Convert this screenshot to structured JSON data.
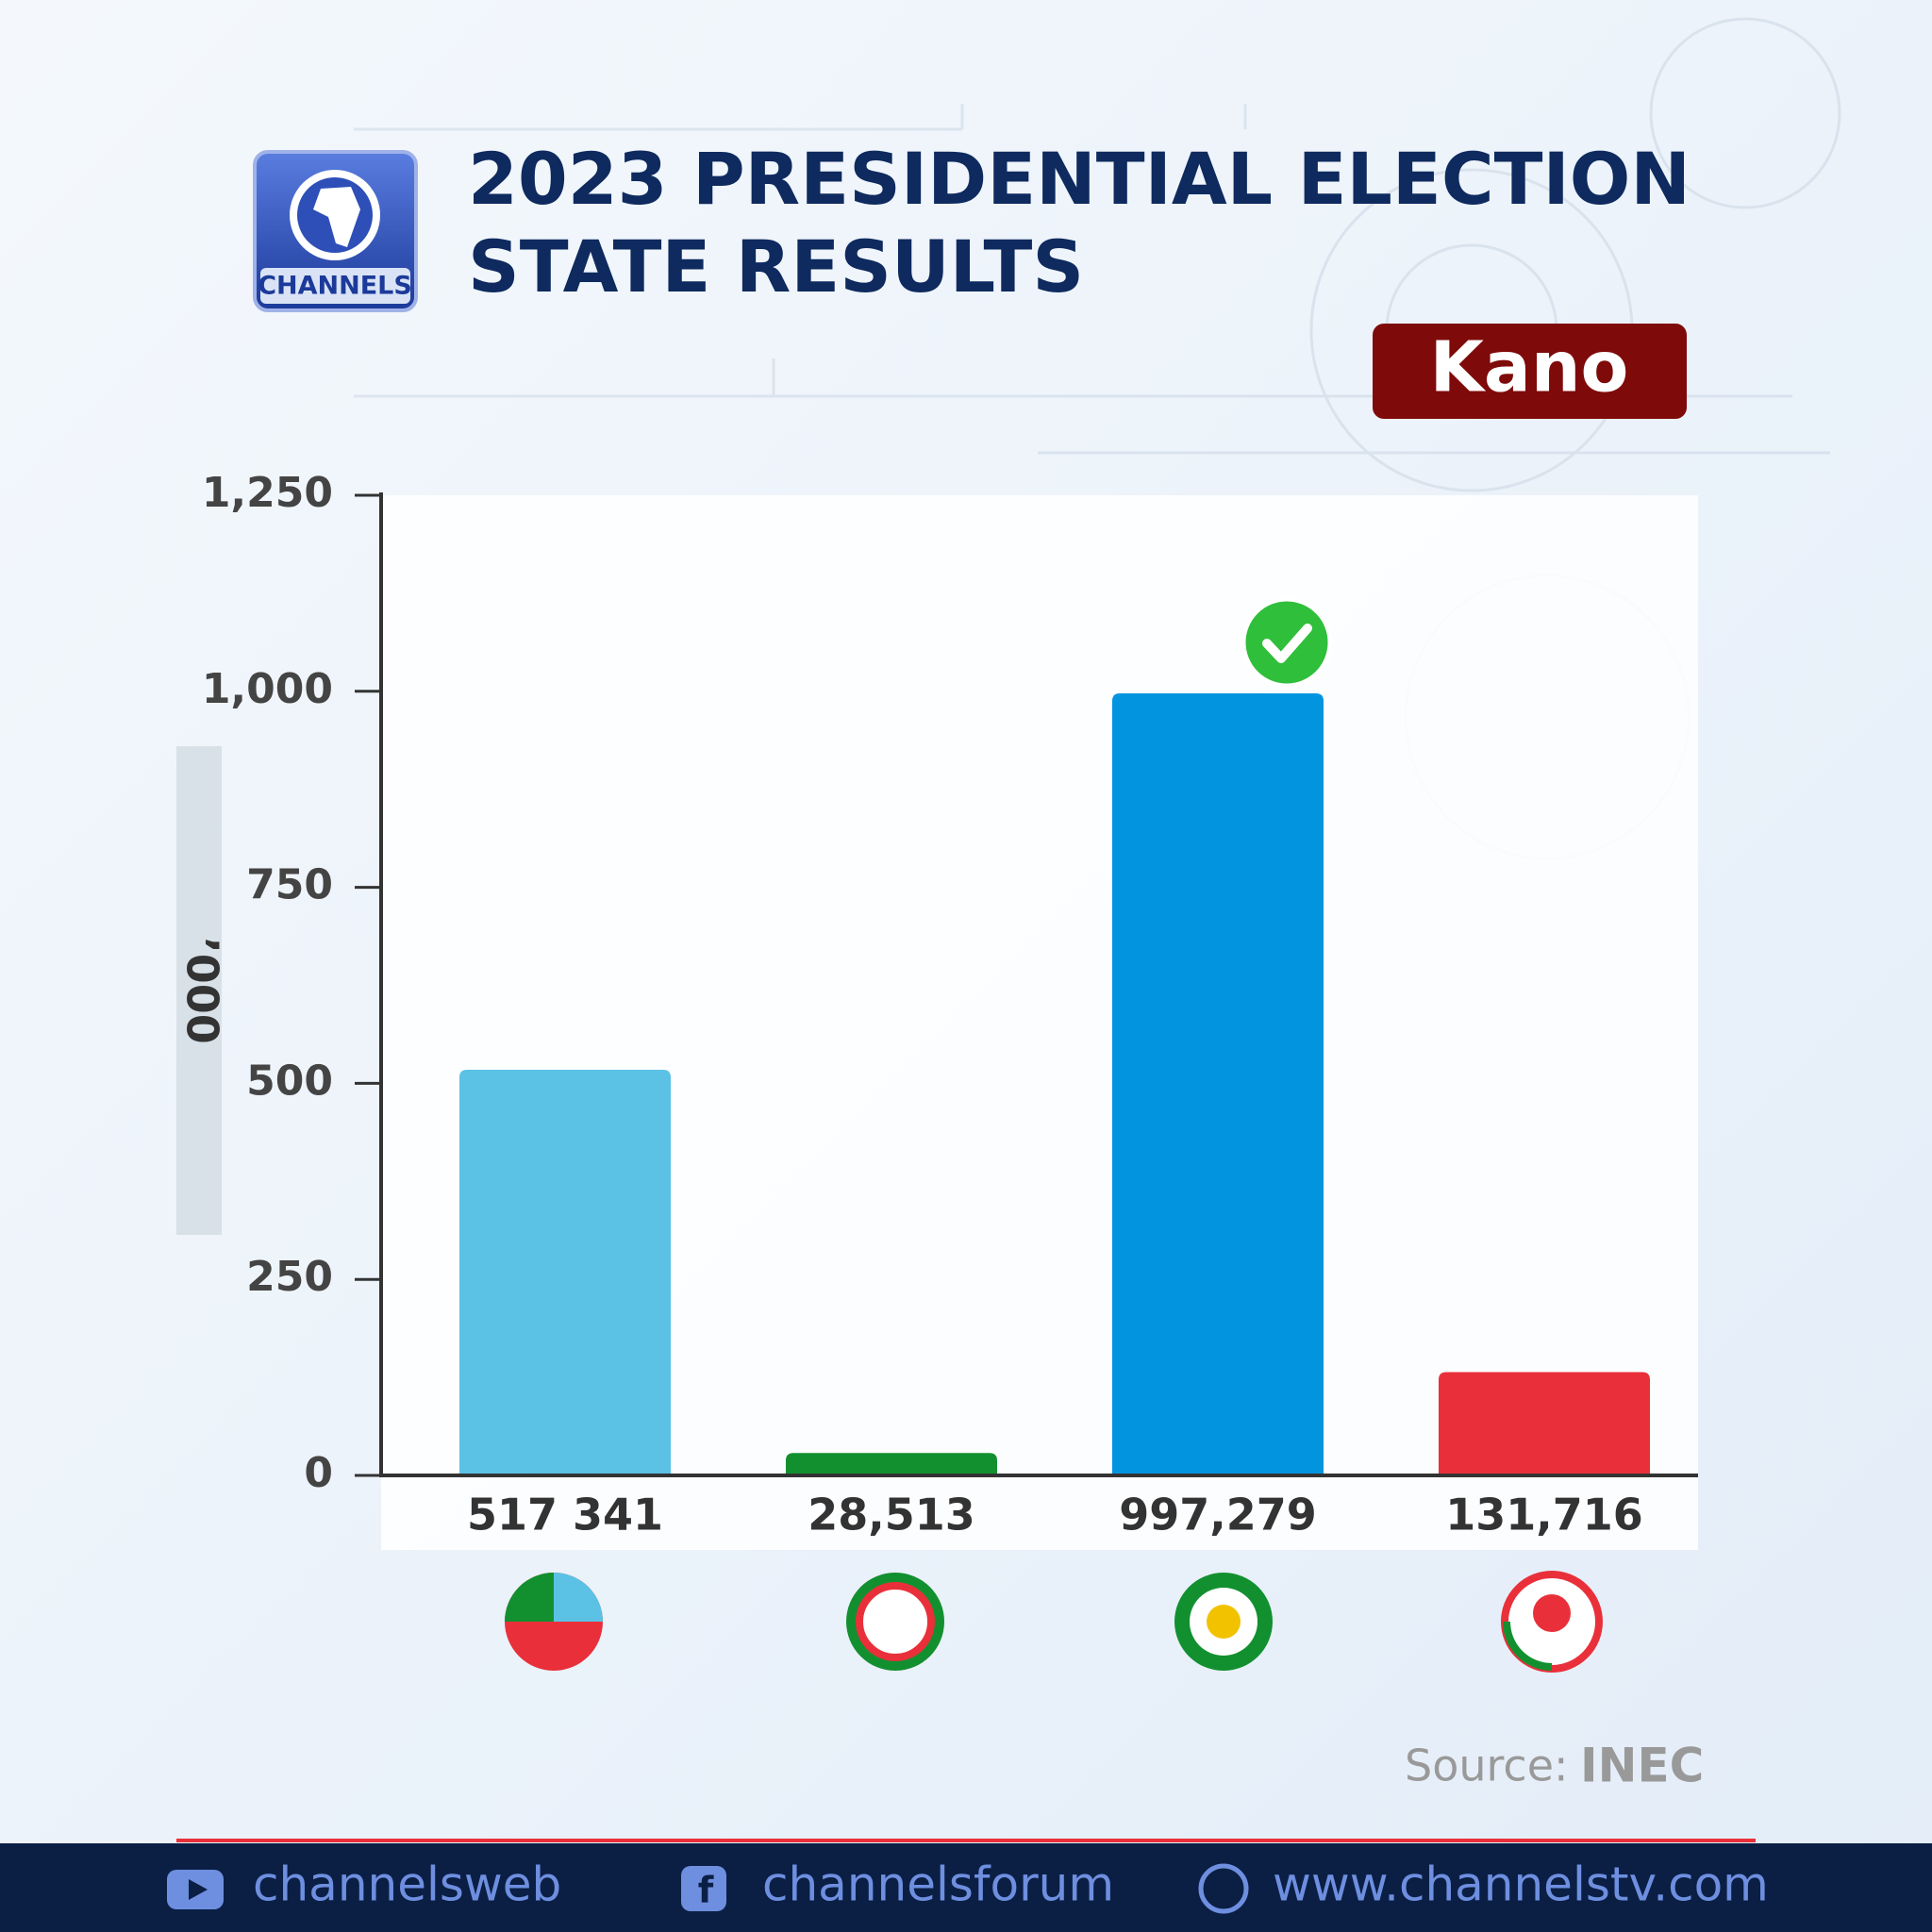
{
  "logo": "CHANNELS",
  "chart_data": {
    "type": "bar",
    "title_lines": [
      "2023 PRESIDENTIAL ELECTION",
      "STATE RESULTS"
    ],
    "state": "Kano",
    "y_label": "’000",
    "values": [
      517.341,
      28.513,
      997.279,
      131.716
    ],
    "value_labels": [
      "517 341",
      "28,513",
      "997,279",
      "131,716"
    ],
    "colors": [
      "#5bc1e5",
      "#12902f",
      "#0394df",
      "#e9303a"
    ],
    "ylim": [
      0,
      1250
    ],
    "yticks": [
      0,
      250,
      500,
      750,
      {
        "value": 1000,
        "label": "1,000"
      },
      {
        "value": 1250,
        "label": "1,250"
      }
    ],
    "source_label": "Source:",
    "source": "INEC"
  },
  "footer": [
    "channelsweb",
    "channelsforum",
    "www.channelstv.com"
  ]
}
